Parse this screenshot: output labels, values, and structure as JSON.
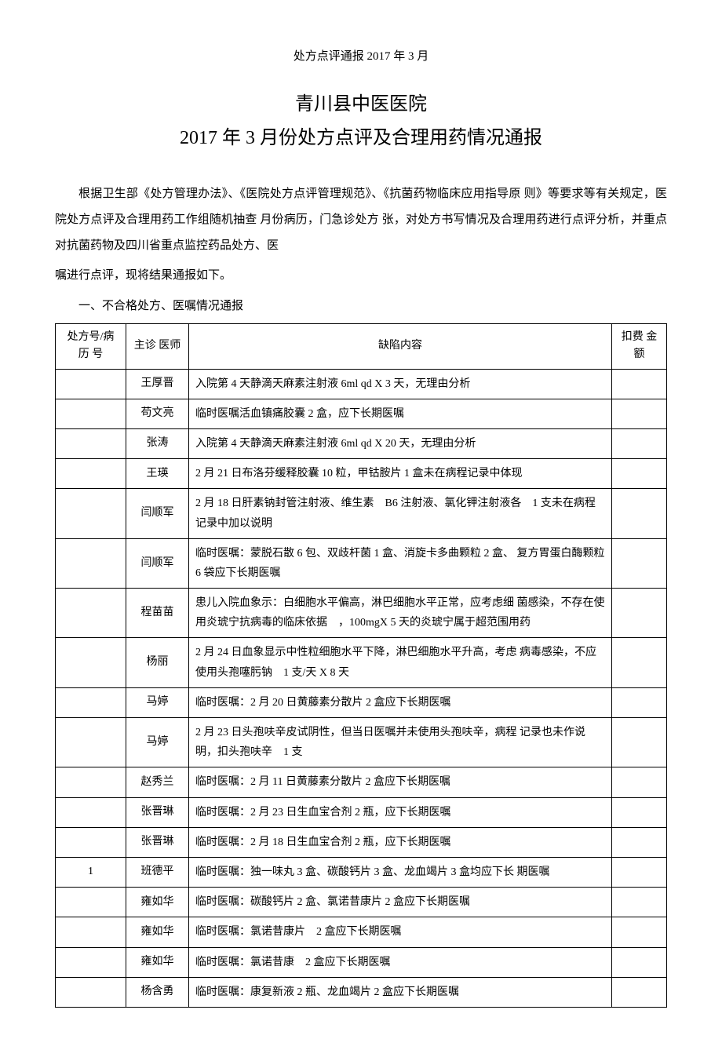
{
  "header": {
    "small_title": "处方点评通报 2017 年 3 月"
  },
  "titles": {
    "main": "青川县中医医院",
    "sub": "2017 年 3 月份处方点评及合理用药情况通报"
  },
  "paragraphs": {
    "p1": "根据卫生部《处方管理办法》、《医院处方点评管理规范》、《抗菌药物临床应用指导原 则》等要求等有关规定，医院处方点评及合理用药工作组随机抽查 月份病历，门急诊处方 张，对处方书写情况及合理用药进行点评分析，并重点对抗菌药物及四川省重点监控药品处方、医",
    "p2": "嘱进行点评，现将结果通报如下。",
    "section1": "一、不合格处方、医嘱情况通报"
  },
  "table": {
    "headers": {
      "id": "处方号/病 历 号",
      "doctor": "主诊 医师",
      "defect": "缺陷内容",
      "amount": "扣费 金额"
    },
    "rows": [
      {
        "id": "",
        "doctor": "王厚晋",
        "defect": "入院第 4 天静滴天麻素注射液 6ml qd X 3 天，无理由分析",
        "amount": ""
      },
      {
        "id": "",
        "doctor": "苟文亮",
        "defect": "临时医嘱活血镇痛胶囊 2 盒，应下长期医嘱",
        "amount": ""
      },
      {
        "id": "",
        "doctor": "张涛",
        "defect": "入院第 4 天静滴天麻素注射液 6ml qd X 20 天，无理由分析",
        "amount": ""
      },
      {
        "id": "",
        "doctor": "王瑛",
        "defect": "2 月 21 日布洛芬缓释胶囊 10 粒，甲钴胺片 1 盒未在病程记录中体现",
        "amount": ""
      },
      {
        "id": "",
        "doctor": "闫顺军",
        "defect": "2 月 18 日肝素钠封管注射液、维生素　B6 注射液、氯化钾注射液各　1 支未在病程记录中加以说明",
        "amount": ""
      },
      {
        "id": "",
        "doctor": "闫顺军",
        "defect": "临时医嘱：蒙脱石散 6 包、双歧杆菌 1 盒、消旋卡多曲颗粒 2 盒、 复方胃蛋白酶颗粒 6 袋应下长期医嘱",
        "amount": ""
      },
      {
        "id": "",
        "doctor": "程苗苗",
        "defect": "患儿入院血象示：白细胞水平偏高，淋巴细胞水平正常，应考虑细 菌感染，不存在使用炎琥宁抗病毒的临床依据　，100mgX 5 天的炎琥宁属于超范围用药",
        "amount": ""
      },
      {
        "id": "",
        "doctor": "杨丽",
        "defect": "2 月 24 日血象显示中性粒细胞水平下降，淋巴细胞水平升高，考虑 病毒感染，不应使用头孢噻肟钠　1 支/天 X 8 天",
        "amount": ""
      },
      {
        "id": "",
        "doctor": "马婷",
        "defect": "临时医嘱：2 月 20 日黄藤素分散片 2 盒应下长期医嘱",
        "amount": ""
      },
      {
        "id": "",
        "doctor": "马婷",
        "defect": "2 月 23 日头孢呋辛皮试阴性，但当日医嘱并未使用头孢呋辛，病程 记录也未作说明，扣头孢呋辛　1 支",
        "amount": ""
      },
      {
        "id": "",
        "doctor": "赵秀兰",
        "defect": "临时医嘱：2 月 11 日黄藤素分散片 2 盒应下长期医嘱",
        "amount": ""
      },
      {
        "id": "",
        "doctor": "张晋琳",
        "defect": "临时医嘱：2 月 23 日生血宝合剂 2 瓶，应下长期医嘱",
        "amount": ""
      },
      {
        "id": "",
        "doctor": "张晋琳",
        "defect": "临时医嘱：2 月 18 日生血宝合剂 2 瓶，应下长期医嘱",
        "amount": ""
      },
      {
        "id": "1",
        "doctor": "班德平",
        "defect": "临时医嘱：独一味丸 3 盒、碳酸钙片 3 盒、龙血竭片 3 盒均应下长 期医嘱",
        "amount": ""
      },
      {
        "id": "",
        "doctor": "雍如华",
        "defect": "临时医嘱：碳酸钙片 2 盒、氯诺昔康片 2 盒应下长期医嘱",
        "amount": ""
      },
      {
        "id": "",
        "doctor": "雍如华",
        "defect": "临时医嘱：氯诺昔康片　2 盒应下长期医嘱",
        "amount": ""
      },
      {
        "id": "",
        "doctor": "雍如华",
        "defect": "临时医嘱：氯诺昔康　2 盒应下长期医嘱",
        "amount": ""
      },
      {
        "id": "",
        "doctor": "杨含勇",
        "defect": "临时医嘱：康复新液 2 瓶、龙血竭片 2 盒应下长期医嘱",
        "amount": ""
      }
    ]
  }
}
